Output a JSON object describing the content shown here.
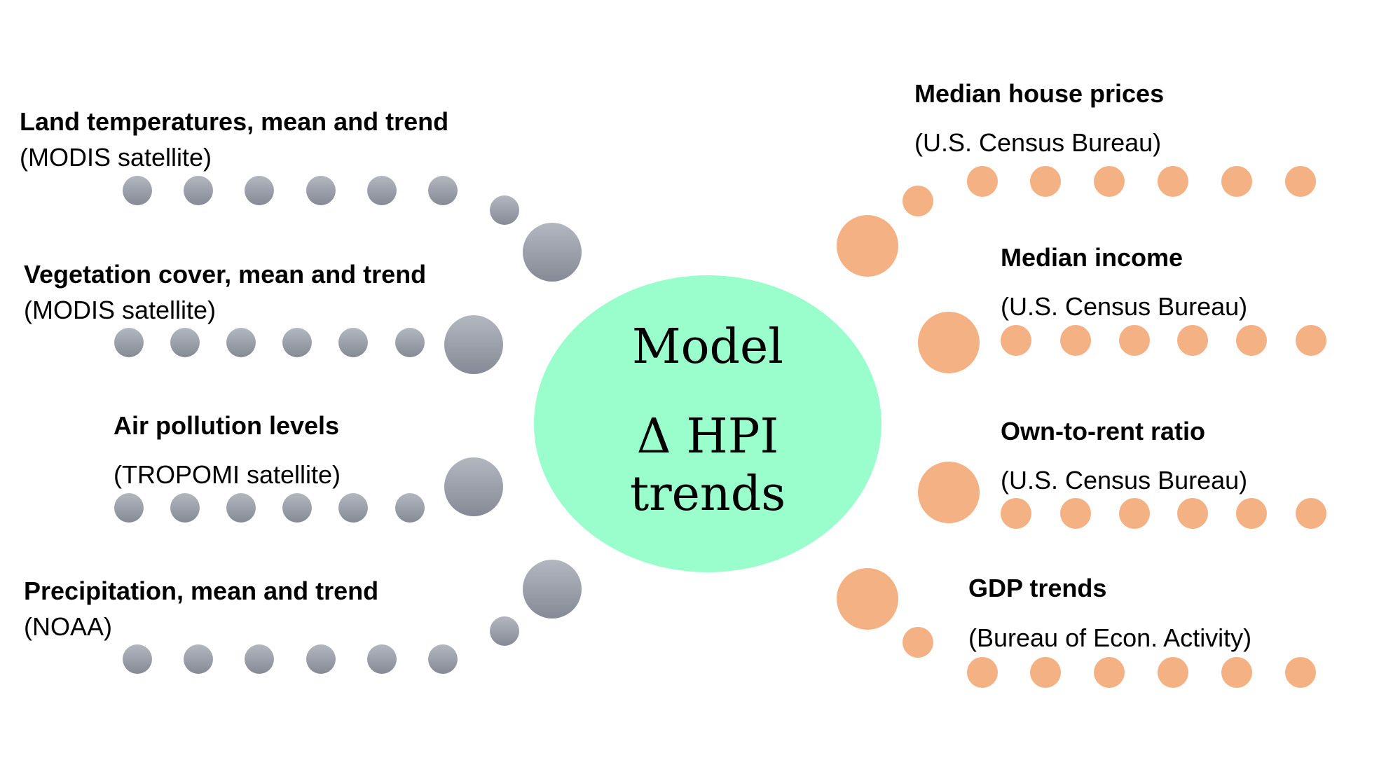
{
  "center": {
    "line1": "Model",
    "line2": "Δ HPI",
    "line3": "trends",
    "fill": "#99FECC"
  },
  "colors": {
    "left_dots": "#8E939E",
    "left_dots_light": "#A9AEB8",
    "right_dots": "#F4B183"
  },
  "left": [
    {
      "title": "Land temperatures, mean and trend",
      "source": "(MODIS satellite)"
    },
    {
      "title": "Vegetation cover, mean and trend",
      "source": "(MODIS satellite)"
    },
    {
      "title": "Air pollution levels",
      "source": "(TROPOMI satellite)"
    },
    {
      "title": "Precipitation, mean and trend",
      "source": "(NOAA)"
    }
  ],
  "right": [
    {
      "title": "Median house prices",
      "source": "(U.S. Census Bureau)"
    },
    {
      "title": "Median income",
      "source": "(U.S. Census Bureau)"
    },
    {
      "title": "Own-to-rent ratio",
      "source": "(U.S. Census Bureau)"
    },
    {
      "title": "GDP trends",
      "source": "(Bureau of Econ. Activity)"
    }
  ]
}
